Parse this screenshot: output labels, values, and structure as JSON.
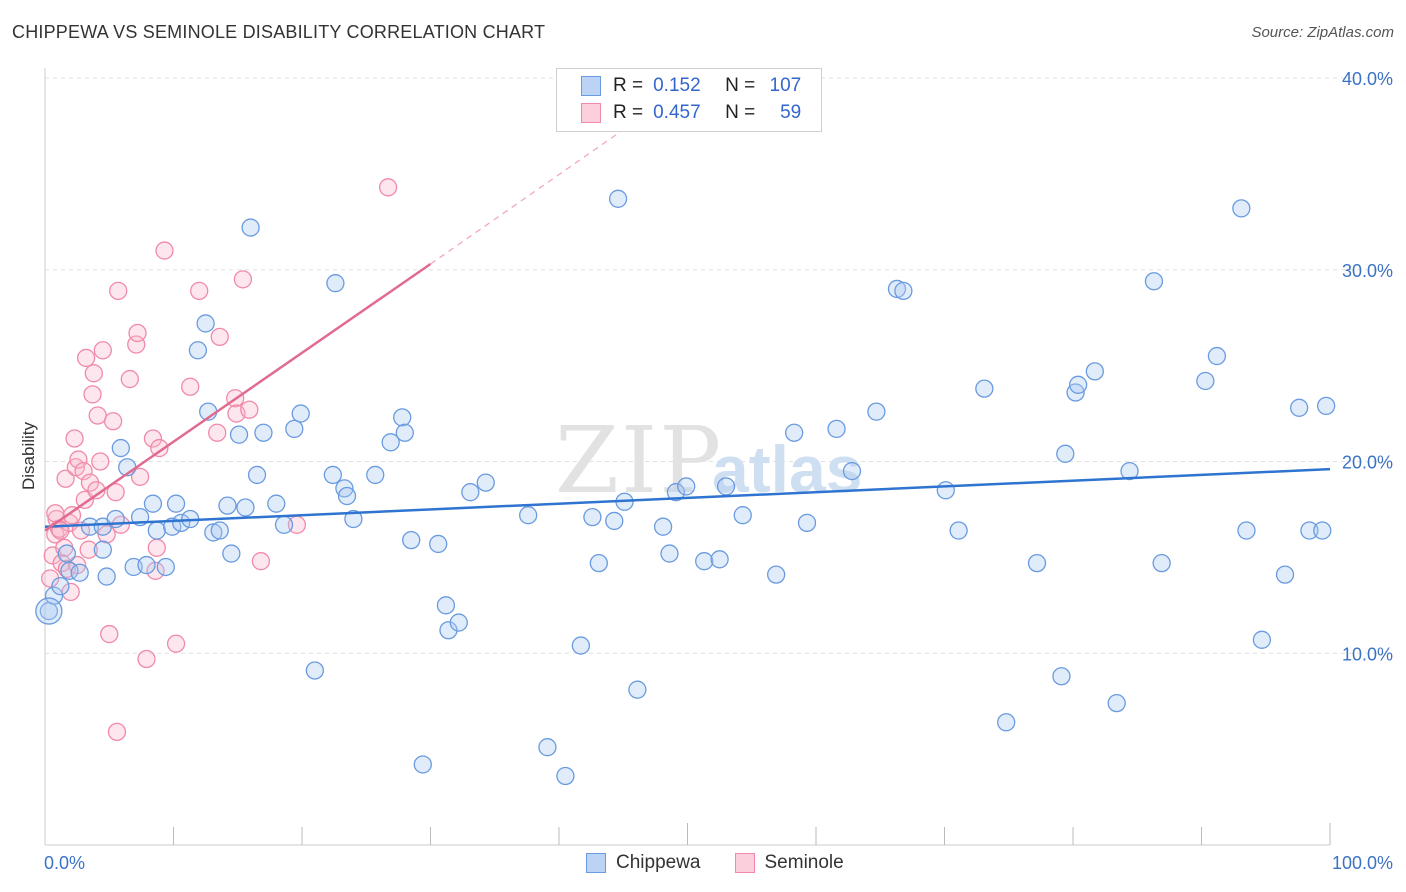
{
  "title": "CHIPPEWA VS SEMINOLE DISABILITY CORRELATION CHART",
  "source": "Source: ZipAtlas.com",
  "watermark": {
    "zip": "ZIP",
    "atlas": "atlas"
  },
  "legend_top": [
    {
      "r_label": "R =",
      "r_value": "0.152",
      "n_label": "N =",
      "n_value": "107"
    },
    {
      "r_label": "R =",
      "r_value": "0.457",
      "n_label": "N =",
      "n_value": "59"
    }
  ],
  "chart_data": {
    "type": "scatter",
    "title": "CHIPPEWA VS SEMINOLE DISABILITY CORRELATION CHART",
    "xlabel": "",
    "ylabel": "Disability",
    "xlim": [
      0,
      100
    ],
    "ylim": [
      0,
      40
    ],
    "x_tick_labels": [
      "0.0%",
      "100.0%"
    ],
    "y_ticks": [
      10,
      20,
      30,
      40
    ],
    "y_tick_labels": [
      "10.0%",
      "20.0%",
      "30.0%",
      "40.0%"
    ],
    "grid": true,
    "legend_position": "bottom",
    "colors": {
      "chippewa": "#6a9be0",
      "seminole": "#f08aa8",
      "chippewa_line": "#2f74d0",
      "seminole_line": "#e06a90",
      "axis_text": "#3b73c4"
    },
    "series": [
      {
        "name": "Chippewa",
        "r": 0.152,
        "n": 107,
        "trend": {
          "x": [
            0,
            100
          ],
          "y": [
            16.6,
            19.6
          ]
        },
        "points": [
          [
            0.3,
            12.2
          ],
          [
            0.7,
            13.0
          ],
          [
            1.2,
            13.5
          ],
          [
            1.7,
            15.2
          ],
          [
            1.9,
            14.3
          ],
          [
            2.7,
            14.2
          ],
          [
            3.5,
            16.6
          ],
          [
            4.5,
            16.6
          ],
          [
            4.5,
            15.4
          ],
          [
            4.8,
            14.0
          ],
          [
            5.5,
            17.0
          ],
          [
            5.9,
            20.7
          ],
          [
            6.4,
            19.7
          ],
          [
            6.9,
            14.5
          ],
          [
            7.4,
            17.1
          ],
          [
            7.9,
            14.6
          ],
          [
            8.4,
            17.8
          ],
          [
            8.7,
            16.4
          ],
          [
            9.4,
            14.5
          ],
          [
            9.9,
            16.6
          ],
          [
            10.2,
            17.8
          ],
          [
            10.6,
            16.8
          ],
          [
            11.3,
            17.0
          ],
          [
            11.9,
            25.8
          ],
          [
            12.5,
            27.2
          ],
          [
            12.7,
            22.6
          ],
          [
            13.1,
            16.3
          ],
          [
            13.6,
            16.4
          ],
          [
            14.2,
            17.7
          ],
          [
            14.5,
            15.2
          ],
          [
            15.1,
            21.4
          ],
          [
            15.6,
            17.6
          ],
          [
            16.0,
            32.2
          ],
          [
            16.5,
            19.3
          ],
          [
            17.0,
            21.5
          ],
          [
            18.0,
            17.8
          ],
          [
            18.6,
            16.7
          ],
          [
            19.4,
            21.7
          ],
          [
            19.9,
            22.5
          ],
          [
            21.0,
            9.1
          ],
          [
            22.4,
            19.3
          ],
          [
            22.6,
            29.3
          ],
          [
            23.3,
            18.6
          ],
          [
            23.5,
            18.2
          ],
          [
            24.0,
            17.0
          ],
          [
            25.7,
            19.3
          ],
          [
            26.9,
            21.0
          ],
          [
            27.8,
            22.3
          ],
          [
            28.0,
            21.5
          ],
          [
            28.5,
            15.9
          ],
          [
            29.4,
            4.2
          ],
          [
            30.6,
            15.7
          ],
          [
            31.2,
            12.5
          ],
          [
            31.4,
            11.2
          ],
          [
            32.2,
            11.6
          ],
          [
            33.1,
            18.4
          ],
          [
            34.3,
            18.9
          ],
          [
            37.6,
            17.2
          ],
          [
            39.1,
            5.1
          ],
          [
            40.5,
            3.6
          ],
          [
            41.7,
            10.4
          ],
          [
            42.6,
            17.1
          ],
          [
            43.1,
            14.7
          ],
          [
            44.3,
            16.9
          ],
          [
            44.6,
            33.7
          ],
          [
            45.1,
            17.9
          ],
          [
            46.1,
            8.1
          ],
          [
            48.1,
            16.6
          ],
          [
            48.6,
            15.2
          ],
          [
            49.1,
            18.4
          ],
          [
            49.9,
            18.7
          ],
          [
            51.3,
            14.8
          ],
          [
            52.5,
            14.9
          ],
          [
            53.0,
            18.7
          ],
          [
            54.3,
            17.2
          ],
          [
            56.9,
            14.1
          ],
          [
            58.3,
            21.5
          ],
          [
            59.3,
            16.8
          ],
          [
            61.6,
            21.7
          ],
          [
            62.8,
            19.5
          ],
          [
            64.7,
            22.6
          ],
          [
            66.3,
            29.0
          ],
          [
            66.8,
            28.9
          ],
          [
            70.1,
            18.5
          ],
          [
            71.1,
            16.4
          ],
          [
            73.1,
            23.8
          ],
          [
            74.8,
            6.4
          ],
          [
            77.2,
            14.7
          ],
          [
            79.1,
            8.8
          ],
          [
            79.4,
            20.4
          ],
          [
            80.2,
            23.6
          ],
          [
            80.4,
            24.0
          ],
          [
            81.7,
            24.7
          ],
          [
            83.4,
            7.4
          ],
          [
            84.4,
            19.5
          ],
          [
            86.3,
            29.4
          ],
          [
            86.9,
            14.7
          ],
          [
            90.3,
            24.2
          ],
          [
            91.2,
            25.5
          ],
          [
            93.1,
            33.2
          ],
          [
            93.5,
            16.4
          ],
          [
            94.7,
            10.7
          ],
          [
            96.5,
            14.1
          ],
          [
            97.6,
            22.8
          ],
          [
            98.4,
            16.4
          ],
          [
            99.4,
            16.4
          ],
          [
            99.7,
            22.9
          ]
        ]
      },
      {
        "name": "Seminole",
        "r": 0.457,
        "n": 59,
        "trend": {
          "x": [
            0,
            30
          ],
          "y": [
            16.4,
            30.3
          ]
        },
        "trend_ext": {
          "x": [
            30,
            45
          ],
          "y": [
            30.3,
            37.3
          ]
        },
        "points": [
          [
            0.4,
            13.9
          ],
          [
            0.6,
            15.1
          ],
          [
            0.8,
            16.2
          ],
          [
            0.9,
            17.0
          ],
          [
            1.1,
            16.5
          ],
          [
            1.3,
            14.7
          ],
          [
            1.6,
            19.1
          ],
          [
            1.7,
            14.4
          ],
          [
            1.9,
            16.8
          ],
          [
            2.0,
            13.2
          ],
          [
            2.1,
            17.2
          ],
          [
            2.3,
            21.2
          ],
          [
            2.4,
            19.7
          ],
          [
            2.6,
            20.1
          ],
          [
            2.8,
            16.4
          ],
          [
            3.0,
            19.5
          ],
          [
            3.1,
            18.0
          ],
          [
            3.2,
            25.4
          ],
          [
            3.4,
            15.4
          ],
          [
            3.5,
            18.9
          ],
          [
            3.7,
            23.5
          ],
          [
            3.8,
            24.6
          ],
          [
            4.1,
            22.4
          ],
          [
            4.3,
            20.0
          ],
          [
            4.5,
            25.8
          ],
          [
            4.8,
            16.2
          ],
          [
            5.0,
            11.0
          ],
          [
            5.3,
            22.1
          ],
          [
            5.5,
            18.4
          ],
          [
            5.7,
            28.9
          ],
          [
            5.9,
            16.7
          ],
          [
            6.6,
            24.3
          ],
          [
            7.1,
            26.1
          ],
          [
            7.2,
            26.7
          ],
          [
            7.4,
            19.2
          ],
          [
            7.9,
            9.7
          ],
          [
            8.4,
            21.2
          ],
          [
            8.6,
            14.3
          ],
          [
            8.7,
            15.5
          ],
          [
            8.9,
            20.7
          ],
          [
            9.3,
            31.0
          ],
          [
            10.2,
            10.5
          ],
          [
            11.3,
            23.9
          ],
          [
            12.0,
            28.9
          ],
          [
            13.4,
            21.5
          ],
          [
            13.6,
            26.5
          ],
          [
            14.8,
            23.3
          ],
          [
            14.9,
            22.5
          ],
          [
            15.4,
            29.5
          ],
          [
            15.9,
            22.7
          ],
          [
            16.8,
            14.8
          ],
          [
            19.6,
            16.7
          ],
          [
            26.7,
            34.3
          ],
          [
            1.2,
            16.4
          ],
          [
            0.8,
            17.3
          ],
          [
            2.5,
            14.6
          ],
          [
            5.6,
            5.9
          ],
          [
            1.5,
            15.5
          ],
          [
            4.0,
            18.5
          ]
        ]
      }
    ]
  }
}
